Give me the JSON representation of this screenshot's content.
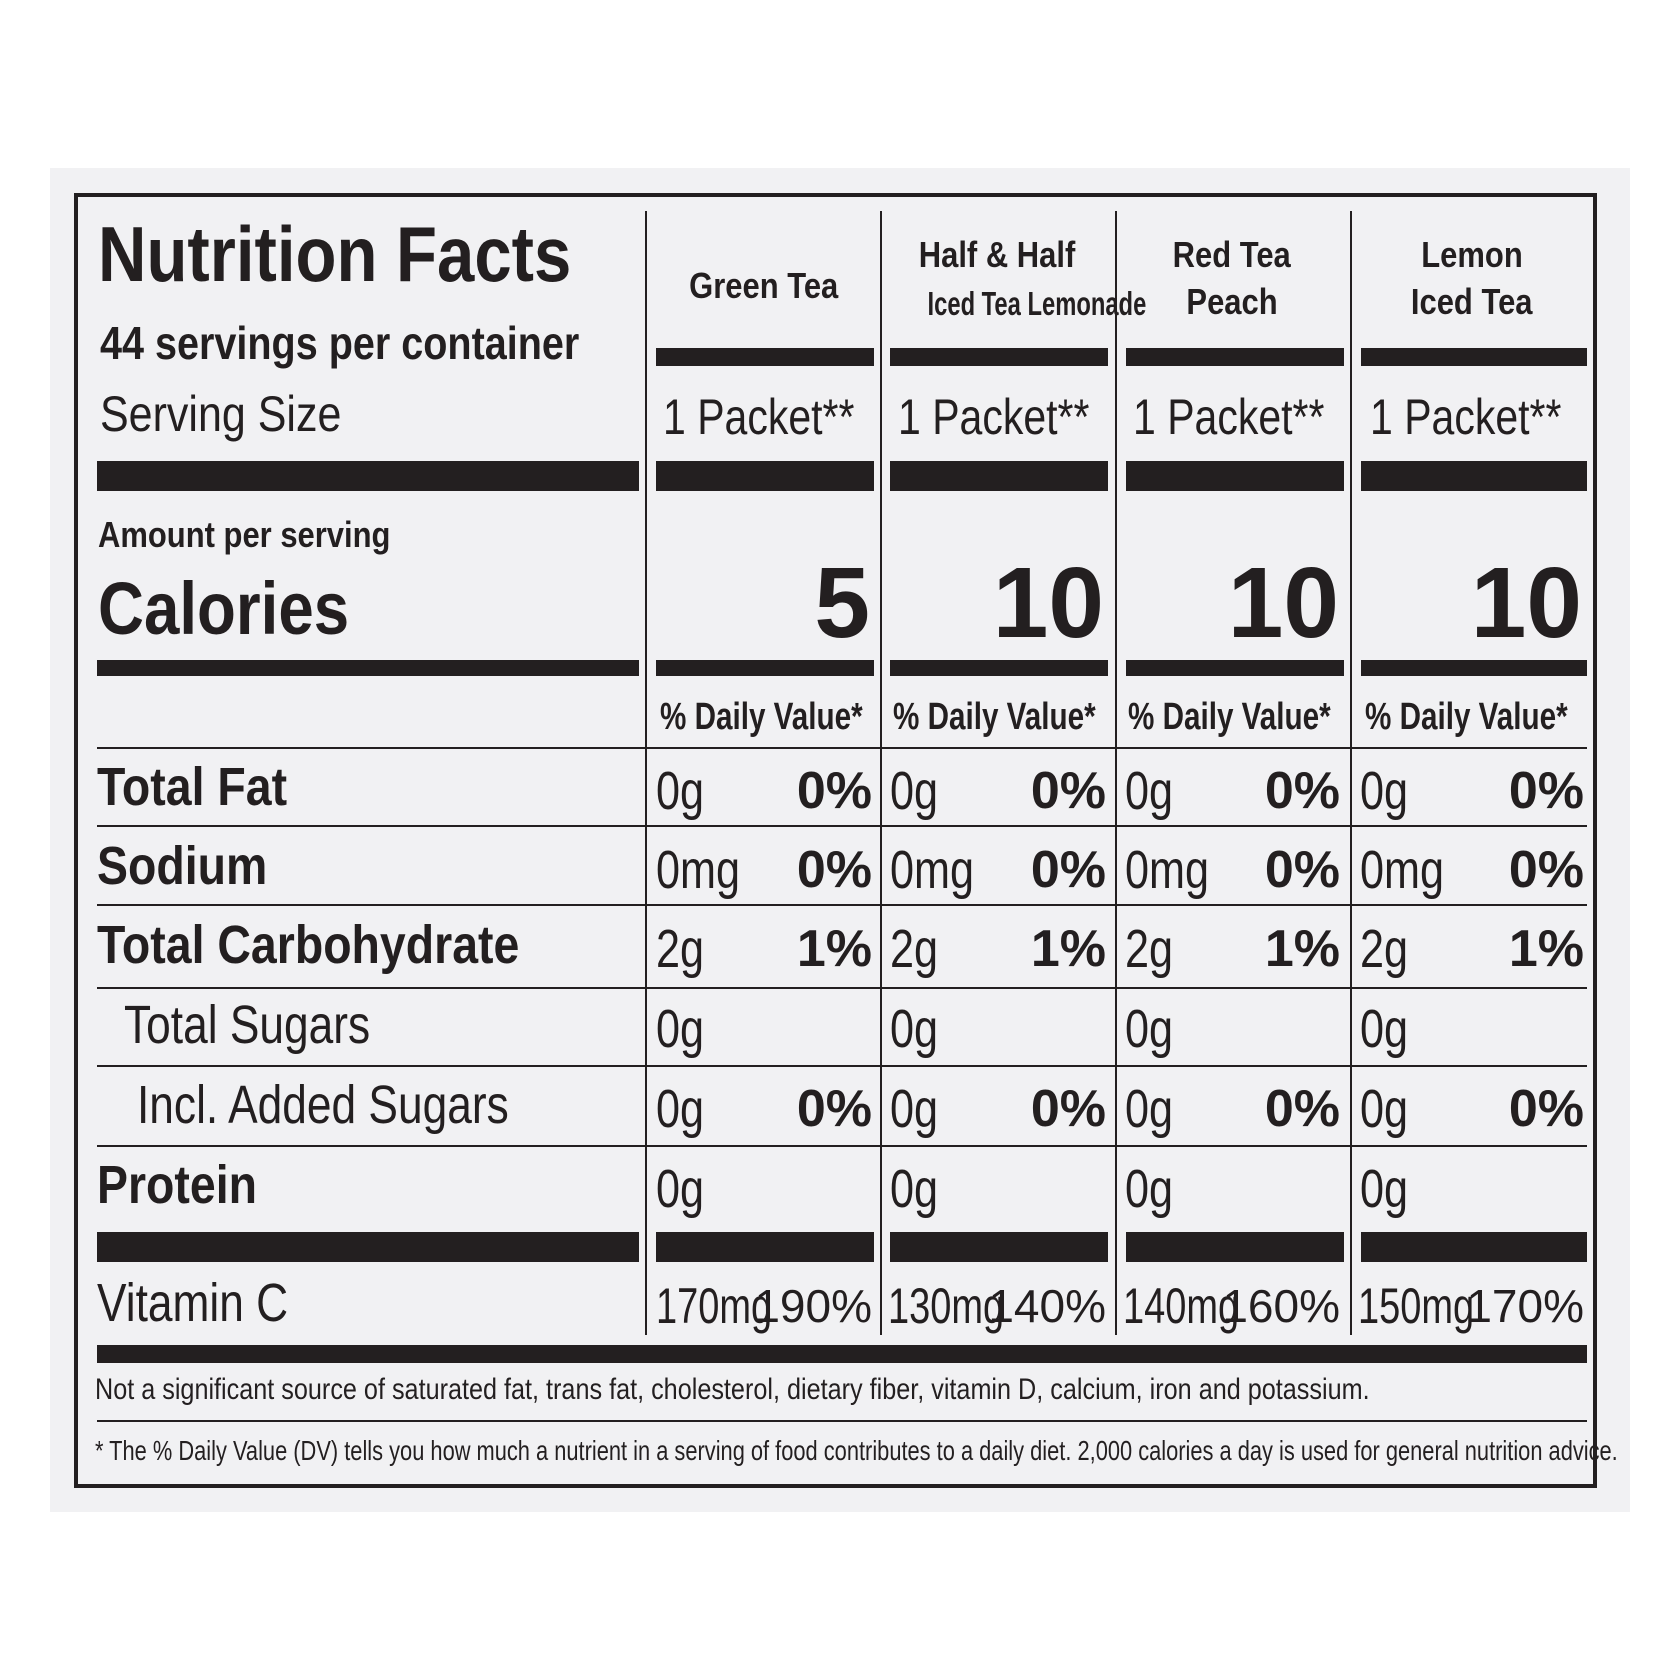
{
  "title": "Nutrition Facts",
  "servings_per_container": "44 servings per container",
  "serving_size_label": "Serving Size",
  "amount_per_serving": "Amount per serving",
  "calories_label": "Calories",
  "columns": [
    {
      "name_line1": "Green Tea",
      "name_line2": "",
      "serving_size": "1 Packet**",
      "calories": "5",
      "dv_header": "% Daily Value*"
    },
    {
      "name_line1": "Half & Half",
      "name_line2": "Iced Tea Lemonade",
      "serving_size": "1 Packet**",
      "calories": "10",
      "dv_header": "% Daily Value*"
    },
    {
      "name_line1": "Red Tea",
      "name_line2": "Peach",
      "serving_size": "1 Packet**",
      "calories": "10",
      "dv_header": "% Daily Value*"
    },
    {
      "name_line1": "Lemon",
      "name_line2": "Iced Tea",
      "serving_size": "1 Packet**",
      "calories": "10",
      "dv_header": "% Daily Value*"
    }
  ],
  "nutrients": [
    {
      "label": "Total Fat",
      "values": [
        {
          "amount": "0g",
          "dv": "0%"
        },
        {
          "amount": "0g",
          "dv": "0%"
        },
        {
          "amount": "0g",
          "dv": "0%"
        },
        {
          "amount": "0g",
          "dv": "0%"
        }
      ]
    },
    {
      "label": "Sodium",
      "values": [
        {
          "amount": "0mg",
          "dv": "0%"
        },
        {
          "amount": "0mg",
          "dv": "0%"
        },
        {
          "amount": "0mg",
          "dv": "0%"
        },
        {
          "amount": "0mg",
          "dv": "0%"
        }
      ]
    },
    {
      "label": "Total Carbohydrate",
      "values": [
        {
          "amount": "2g",
          "dv": "1%"
        },
        {
          "amount": "2g",
          "dv": "1%"
        },
        {
          "amount": "2g",
          "dv": "1%"
        },
        {
          "amount": "2g",
          "dv": "1%"
        }
      ]
    },
    {
      "label": "Total Sugars",
      "values": [
        {
          "amount": "0g",
          "dv": ""
        },
        {
          "amount": "0g",
          "dv": ""
        },
        {
          "amount": "0g",
          "dv": ""
        },
        {
          "amount": "0g",
          "dv": ""
        }
      ]
    },
    {
      "label": "Incl. Added Sugars",
      "values": [
        {
          "amount": "0g",
          "dv": "0%"
        },
        {
          "amount": "0g",
          "dv": "0%"
        },
        {
          "amount": "0g",
          "dv": "0%"
        },
        {
          "amount": "0g",
          "dv": "0%"
        }
      ]
    },
    {
      "label": "Protein",
      "values": [
        {
          "amount": "0g",
          "dv": ""
        },
        {
          "amount": "0g",
          "dv": ""
        },
        {
          "amount": "0g",
          "dv": ""
        },
        {
          "amount": "0g",
          "dv": ""
        }
      ]
    }
  ],
  "vitamin": {
    "label": "Vitamin C",
    "values": [
      {
        "amount": "170mg",
        "dv": "190%"
      },
      {
        "amount": "130mg",
        "dv": "140%"
      },
      {
        "amount": "140mg",
        "dv": "160%"
      },
      {
        "amount": "150mg",
        "dv": "170%"
      }
    ]
  },
  "footnote_significant": "Not a significant source of saturated fat, trans fat, cholesterol, dietary fiber, vitamin D, calcium, iron and potassium.",
  "footnote_dv": "*  The % Daily Value (DV) tells you how much a nutrient in a serving of food contributes to a daily diet. 2,000 calories a day is used for general nutrition advice."
}
